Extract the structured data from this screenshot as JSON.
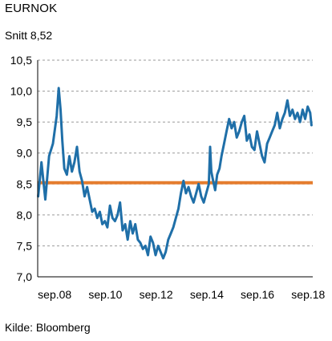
{
  "title": "EURNOK",
  "subtitle": "Snitt 8,52",
  "source": "Kilde: Bloomberg",
  "colors": {
    "series": "#1f6fa8",
    "average": "#e57d2e",
    "grid": "#9a9a9a",
    "axis": "#000000"
  },
  "chart_data": {
    "type": "line",
    "title": "EURNOK",
    "subtitle": "Snitt 8,52",
    "xlabel": "",
    "ylabel": "",
    "ylim": [
      7.0,
      10.5
    ],
    "xlim": [
      2008.0,
      2018.85
    ],
    "y_ticks": [
      7.0,
      7.5,
      8.0,
      8.5,
      9.0,
      9.5,
      10.0,
      10.5
    ],
    "y_tick_labels": [
      "7,0",
      "7,5",
      "8,0",
      "8,5",
      "9,0",
      "9,5",
      "10,0",
      "10,5"
    ],
    "x_ticks": [
      2008.67,
      2010.67,
      2012.67,
      2014.67,
      2016.67,
      2018.67
    ],
    "x_tick_labels": [
      "sep.08",
      "sep.10",
      "sep.12",
      "sep.14",
      "sep.16",
      "sep.18"
    ],
    "grid": "horizontal dashed",
    "average": 8.52,
    "series": [
      {
        "x": [
          2008.02,
          2008.15,
          2008.3,
          2008.45,
          2008.6,
          2008.75,
          2008.83,
          2008.9,
          2008.97,
          2009.05,
          2009.15,
          2009.25,
          2009.35,
          2009.45,
          2009.55,
          2009.65,
          2009.75,
          2009.85,
          2009.95,
          2010.05,
          2010.15,
          2010.25,
          2010.35,
          2010.45,
          2010.55,
          2010.65,
          2010.75,
          2010.85,
          2010.95,
          2011.05,
          2011.15,
          2011.25,
          2011.35,
          2011.45,
          2011.55,
          2011.65,
          2011.75,
          2011.85,
          2011.95,
          2012.05,
          2012.15,
          2012.25,
          2012.35,
          2012.45,
          2012.55,
          2012.65,
          2012.75,
          2012.85,
          2012.95,
          2013.05,
          2013.15,
          2013.25,
          2013.35,
          2013.45,
          2013.55,
          2013.65,
          2013.75,
          2013.85,
          2013.95,
          2014.05,
          2014.15,
          2014.25,
          2014.35,
          2014.45,
          2014.55,
          2014.65,
          2014.75,
          2014.8,
          2014.85,
          2014.92,
          2015.0,
          2015.08,
          2015.17,
          2015.25,
          2015.35,
          2015.45,
          2015.55,
          2015.65,
          2015.75,
          2015.85,
          2015.95,
          2016.05,
          2016.15,
          2016.25,
          2016.35,
          2016.45,
          2016.55,
          2016.65,
          2016.75,
          2016.85,
          2016.95,
          2017.05,
          2017.15,
          2017.25,
          2017.35,
          2017.45,
          2017.55,
          2017.65,
          2017.75,
          2017.85,
          2017.95,
          2018.05,
          2018.15,
          2018.25,
          2018.35,
          2018.45,
          2018.55,
          2018.65,
          2018.75,
          2018.8
        ],
        "y": [
          8.3,
          8.85,
          8.25,
          8.95,
          9.15,
          9.6,
          10.05,
          9.7,
          9.2,
          8.75,
          8.65,
          8.95,
          8.7,
          8.85,
          9.1,
          8.7,
          8.55,
          8.3,
          8.45,
          8.25,
          8.05,
          8.1,
          7.95,
          8.05,
          7.85,
          7.9,
          7.8,
          8.15,
          7.95,
          7.9,
          8.0,
          8.2,
          7.75,
          7.85,
          7.6,
          7.9,
          7.7,
          7.85,
          7.6,
          7.55,
          7.45,
          7.5,
          7.35,
          7.65,
          7.55,
          7.35,
          7.5,
          7.4,
          7.3,
          7.4,
          7.6,
          7.7,
          7.8,
          7.95,
          8.1,
          8.35,
          8.55,
          8.35,
          8.45,
          8.3,
          8.2,
          8.35,
          8.5,
          8.3,
          8.2,
          8.35,
          8.5,
          9.1,
          8.7,
          8.55,
          8.4,
          8.65,
          8.75,
          8.95,
          9.15,
          9.35,
          9.55,
          9.4,
          9.5,
          9.25,
          9.35,
          9.5,
          9.6,
          9.2,
          9.3,
          9.1,
          9.05,
          9.35,
          9.15,
          8.95,
          8.85,
          9.15,
          9.25,
          9.35,
          9.45,
          9.65,
          9.4,
          9.55,
          9.65,
          9.85,
          9.6,
          9.7,
          9.55,
          9.65,
          9.5,
          9.7,
          9.55,
          9.75,
          9.65,
          9.45
        ]
      }
    ]
  }
}
